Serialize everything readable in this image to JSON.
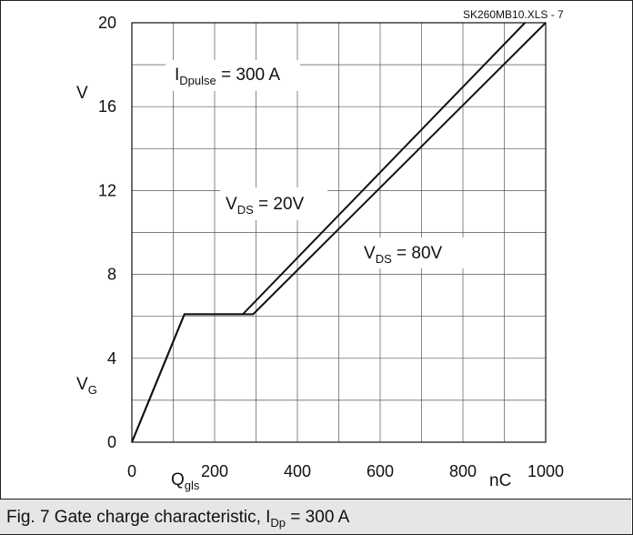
{
  "chart_data": {
    "type": "line",
    "source_tag": "SK260MB10.XLS - 7",
    "ylabel_unit": "V",
    "ylabel_symbol": "V",
    "ylabel_symbol_sub": "G",
    "xlabel_symbol": "Q",
    "xlabel_symbol_sub": "gls",
    "xlabel_unit": "nC",
    "xlim": [
      0,
      1000
    ],
    "ylim": [
      0,
      20
    ],
    "xticks": [
      0,
      200,
      400,
      600,
      800,
      1000
    ],
    "yticks": [
      0,
      4,
      8,
      12,
      16,
      20
    ],
    "grid": true,
    "annotations": {
      "current": {
        "main": "I",
        "sub": "Dpulse",
        "rest": " = 300 A"
      },
      "series_20": {
        "main": "V",
        "sub": "DS",
        "rest": " = 20V"
      },
      "series_80": {
        "main": "V",
        "sub": "DS",
        "rest": " = 80V"
      }
    },
    "series": [
      {
        "name": "V_DS = 20V",
        "x": [
          0,
          127,
          268,
          950
        ],
        "y": [
          0,
          6.1,
          6.1,
          20
        ]
      },
      {
        "name": "V_DS = 80V",
        "x": [
          0,
          127,
          293,
          1000
        ],
        "y": [
          0,
          6.1,
          6.1,
          20
        ]
      }
    ]
  },
  "caption": {
    "prefix": "Fig. 7 Gate charge characteristic, I",
    "sub": "Dp",
    "suffix": " = 300 A"
  }
}
